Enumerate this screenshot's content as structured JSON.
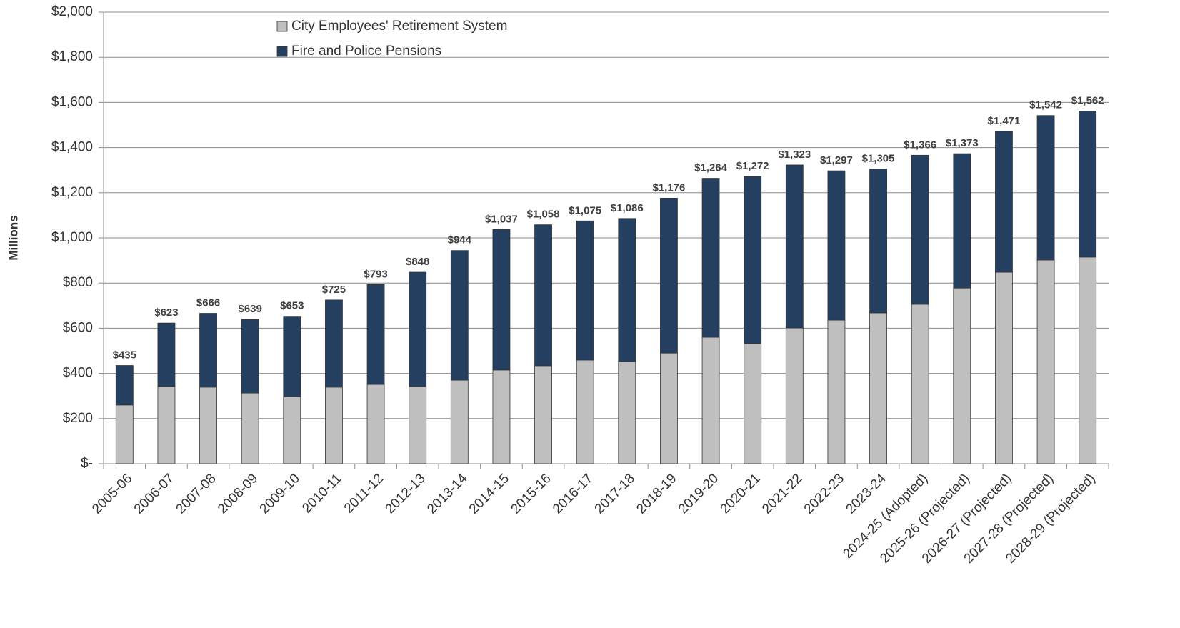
{
  "chart_data": {
    "type": "stacked_bar",
    "y_label": "Millions",
    "categories": [
      "2005-06",
      "2006-07",
      "2007-08",
      "2008-09",
      "2009-10",
      "2010-11",
      "2011-12",
      "2012-13",
      "2013-14",
      "2014-15",
      "2015-16",
      "2016-17",
      "2017-18",
      "2018-19",
      "2019-20",
      "2020-21",
      "2021-22",
      "2022-23",
      "2023-24",
      "2024-25 (Adopted)",
      "2025-26 (Projected)",
      "2026-27 (Projected)",
      "2027-28 (Projected)",
      "2028-29 (Projected)"
    ],
    "series": [
      {
        "name": "City Employees' Retirement System",
        "color": "#bfbfbf",
        "values": [
          260,
          342,
          339,
          313,
          297,
          339,
          351,
          342,
          370,
          415,
          434,
          459,
          453,
          490,
          560,
          532,
          601,
          636,
          668,
          706,
          778,
          848,
          902,
          915
        ]
      },
      {
        "name": "Fire and Police Pensions",
        "color": "#243f60",
        "values": [
          175,
          281,
          327,
          326,
          356,
          386,
          442,
          506,
          574,
          622,
          624,
          616,
          633,
          686,
          704,
          740,
          722,
          661,
          637,
          660,
          595,
          623,
          640,
          647
        ]
      }
    ],
    "totals": [
      435,
      623,
      666,
      639,
      653,
      725,
      793,
      848,
      944,
      1037,
      1058,
      1075,
      1086,
      1176,
      1264,
      1272,
      1323,
      1297,
      1305,
      1366,
      1373,
      1471,
      1542,
      1562
    ],
    "total_labels": [
      "$435",
      "$623",
      "$666",
      "$639",
      "$653",
      "$725",
      "$793",
      "$848",
      "$944",
      "$1,037",
      "$1,058",
      "$1,075",
      "$1,086",
      "$1,176",
      "$1,264",
      "$1,272",
      "$1,323",
      "$1,297",
      "$1,305",
      "$1,366",
      "$1,373",
      "$1,471",
      "$1,542",
      "$1,562"
    ],
    "ylim": [
      0,
      2000
    ],
    "yticks": [
      {
        "value": 0,
        "label": "$-"
      },
      {
        "value": 200,
        "label": "$200"
      },
      {
        "value": 400,
        "label": "$400"
      },
      {
        "value": 600,
        "label": "$600"
      },
      {
        "value": 800,
        "label": "$800"
      },
      {
        "value": 1000,
        "label": "$1,000"
      },
      {
        "value": 1200,
        "label": "$1,200"
      },
      {
        "value": 1400,
        "label": "$1,400"
      },
      {
        "value": 1600,
        "label": "$1,600"
      },
      {
        "value": 1800,
        "label": "$1,800"
      },
      {
        "value": 2000,
        "label": "$2,000"
      }
    ],
    "grid": true
  }
}
